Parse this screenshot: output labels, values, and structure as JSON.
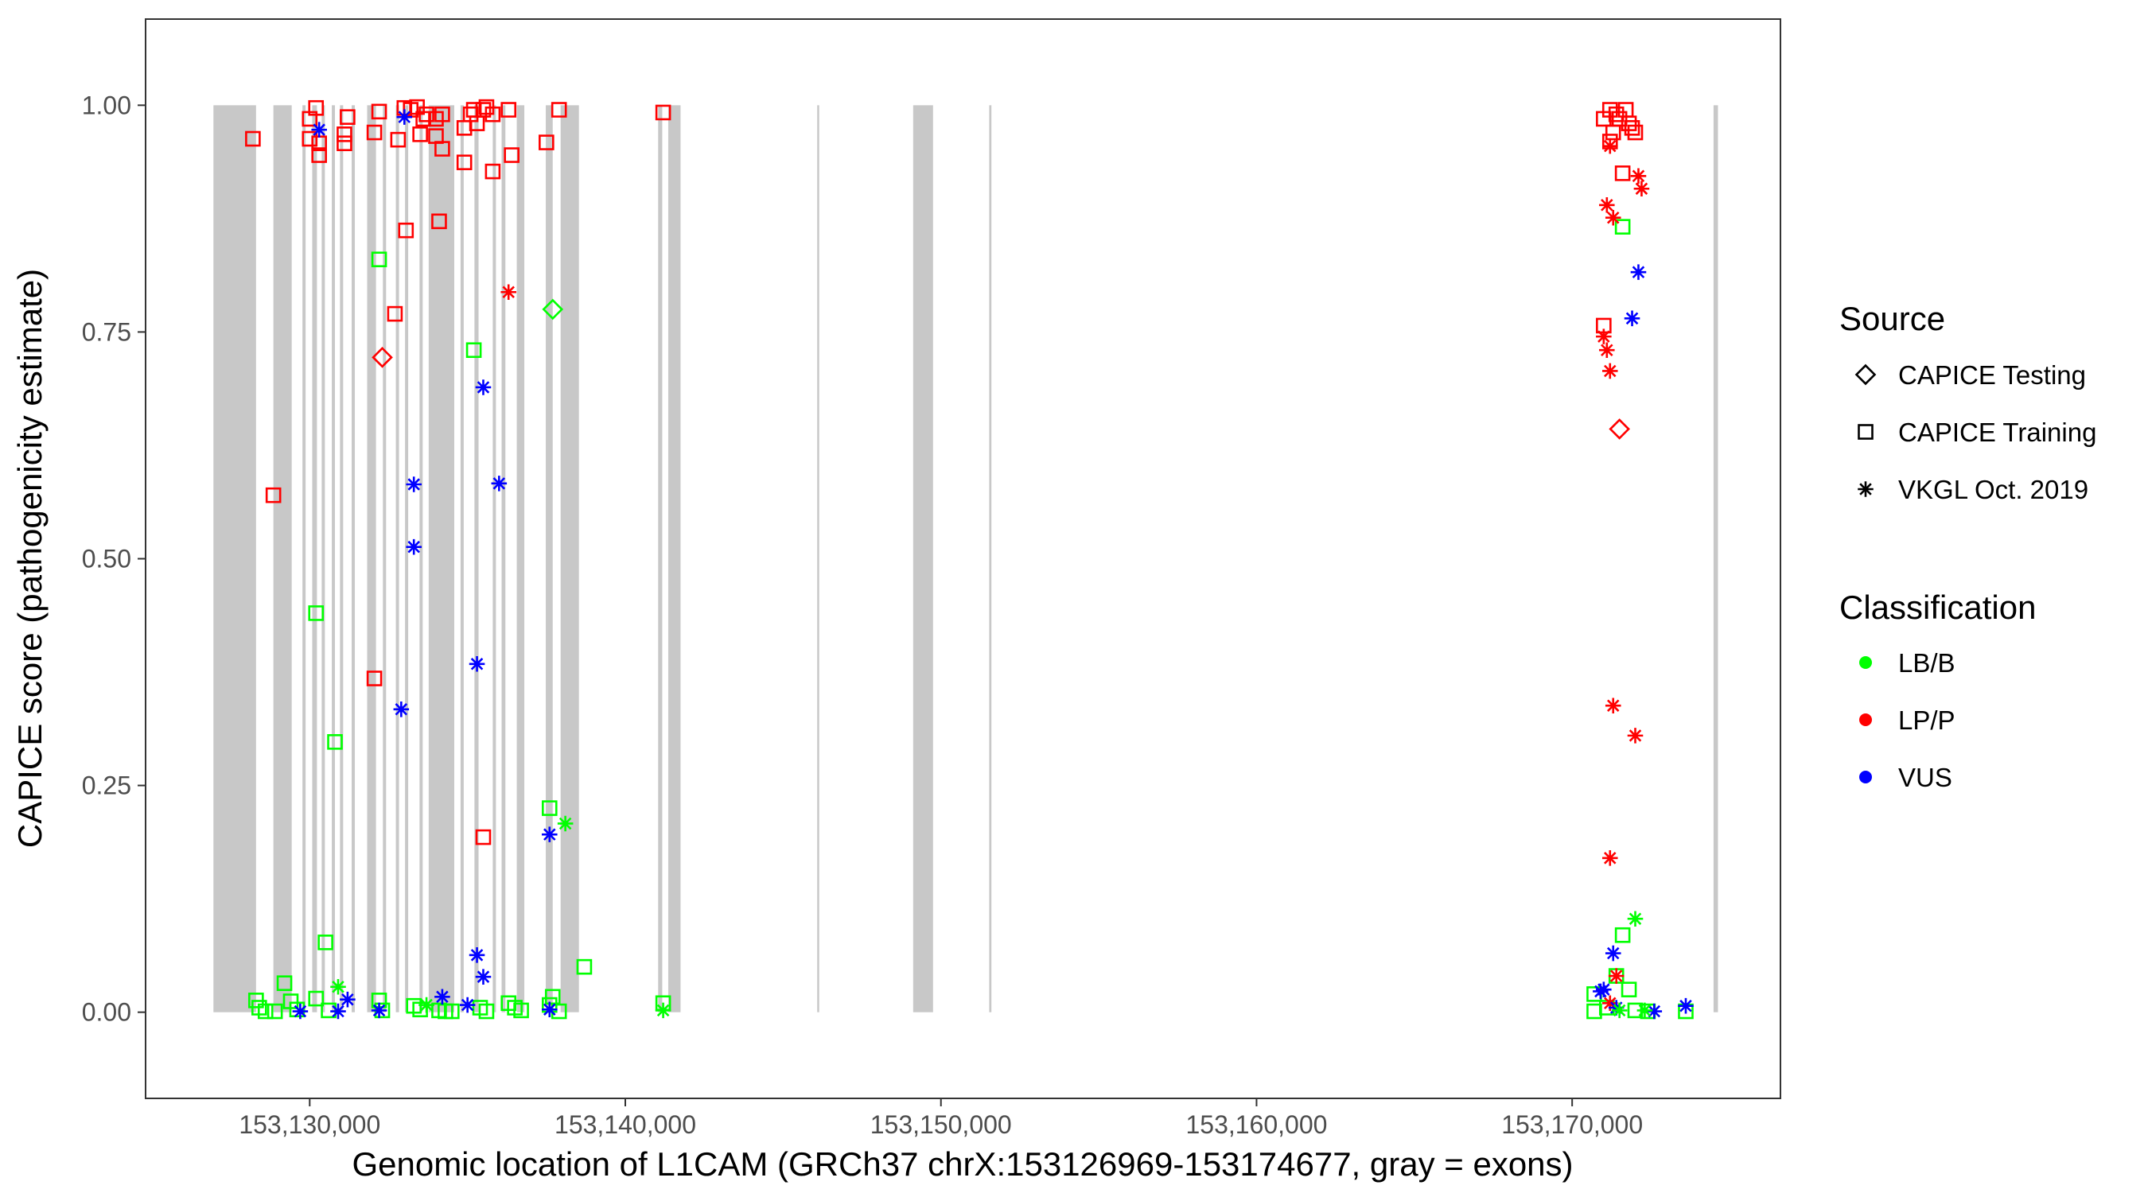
{
  "chart_data": {
    "type": "scatter",
    "xlabel": "Genomic location of L1CAM (GRCh37 chrX:153126969-153174677, gray = exons)",
    "ylabel": "CAPICE score (pathogenicity estimate)",
    "xlim": [
      153124800,
      153176600
    ],
    "ylim": [
      -0.095,
      1.095
    ],
    "x_ticks": [
      153130000,
      153140000,
      153150000,
      153160000,
      153170000
    ],
    "x_tick_labels": [
      "153,130,000",
      "153,140,000",
      "153,150,000",
      "153,160,000",
      "153,170,000"
    ],
    "y_ticks": [
      0,
      0.25,
      0.5,
      0.75,
      1
    ],
    "y_tick_labels": [
      "0.00",
      "0.25",
      "0.50",
      "0.75",
      "1.00"
    ],
    "grid": false,
    "exons": [
      [
        153126950,
        153128300
      ],
      [
        153128850,
        153129430
      ],
      [
        153129770,
        153129870
      ],
      [
        153130080,
        153130230
      ],
      [
        153130380,
        153130480
      ],
      [
        153130700,
        153130800
      ],
      [
        153130960,
        153131060
      ],
      [
        153131330,
        153131430
      ],
      [
        153131820,
        153132100
      ],
      [
        153132320,
        153132420
      ],
      [
        153132730,
        153132830
      ],
      [
        153133020,
        153133120
      ],
      [
        153133480,
        153133580
      ],
      [
        153133770,
        153134580
      ],
      [
        153134780,
        153134880
      ],
      [
        153135220,
        153135350
      ],
      [
        153135800,
        153135900
      ],
      [
        153136080,
        153136200
      ],
      [
        153136560,
        153136800
      ],
      [
        153137480,
        153137700
      ],
      [
        153137950,
        153138530
      ],
      [
        153141040,
        153141170
      ],
      [
        153141360,
        153141750
      ],
      [
        153146080,
        153146140
      ],
      [
        153149120,
        153149750
      ],
      [
        153151530,
        153151600
      ],
      [
        153174480,
        153174620
      ]
    ],
    "sources": [
      {
        "name": "CAPICE Testing",
        "shape": "diamond"
      },
      {
        "name": "CAPICE Training",
        "shape": "square"
      },
      {
        "name": "VKGL Oct. 2019",
        "shape": "asterisk"
      }
    ],
    "classifications": [
      {
        "name": "LB/B",
        "color": "#00ff00"
      },
      {
        "name": "LP/P",
        "color": "#ff0000"
      },
      {
        "name": "VUS",
        "color": "#0000ff"
      }
    ],
    "series": [
      {
        "source": "CAPICE Training",
        "class": "LP/P",
        "points": [
          [
            153128200,
            0.963
          ],
          [
            153128850,
            0.57
          ],
          [
            153130000,
            0.985
          ],
          [
            153130200,
            0.997
          ],
          [
            153130000,
            0.963
          ],
          [
            153130300,
            0.958
          ],
          [
            153130300,
            0.945
          ],
          [
            153131100,
            0.958
          ],
          [
            153131100,
            0.968
          ],
          [
            153131200,
            0.987
          ],
          [
            153132050,
            0.97
          ],
          [
            153132200,
            0.993
          ],
          [
            153132050,
            0.368
          ],
          [
            153132700,
            0.77
          ],
          [
            153132800,
            0.962
          ],
          [
            153133000,
            0.997
          ],
          [
            153133050,
            0.862
          ],
          [
            153133200,
            0.995
          ],
          [
            153133400,
            0.998
          ],
          [
            153133600,
            0.985
          ],
          [
            153133500,
            0.968
          ],
          [
            153133700,
            0.99
          ],
          [
            153134000,
            0.985
          ],
          [
            153134000,
            0.966
          ],
          [
            153134100,
            0.872
          ],
          [
            153134200,
            0.99
          ],
          [
            153134200,
            0.952
          ],
          [
            153134900,
            0.937
          ],
          [
            153134900,
            0.975
          ],
          [
            153135100,
            0.99
          ],
          [
            153135200,
            0.995
          ],
          [
            153135300,
            0.98
          ],
          [
            153135500,
            0.995
          ],
          [
            153135600,
            0.998
          ],
          [
            153135800,
            0.99
          ],
          [
            153135800,
            0.927
          ],
          [
            153135500,
            0.193
          ],
          [
            153136300,
            0.995
          ],
          [
            153136400,
            0.945
          ],
          [
            153137500,
            0.959
          ],
          [
            153137900,
            0.995
          ],
          [
            153141200,
            0.992
          ],
          [
            153171000,
            0.985
          ],
          [
            153171200,
            0.995
          ],
          [
            153171400,
            0.99
          ],
          [
            153171500,
            0.985
          ],
          [
            153171700,
            0.995
          ],
          [
            153171800,
            0.98
          ],
          [
            153171900,
            0.975
          ],
          [
            153172000,
            0.97
          ],
          [
            153171200,
            0.96
          ],
          [
            153171300,
            0.97
          ],
          [
            153171600,
            0.925
          ],
          [
            153171000,
            0.757
          ]
        ]
      },
      {
        "source": "CAPICE Training",
        "class": "LB/B",
        "points": [
          [
            153128300,
            0.013
          ],
          [
            153128400,
            0.005
          ],
          [
            153128600,
            0.001
          ],
          [
            153128900,
            0.001
          ],
          [
            153129200,
            0.032
          ],
          [
            153129400,
            0.012
          ],
          [
            153129600,
            0.003
          ],
          [
            153130200,
            0.44
          ],
          [
            153130200,
            0.015
          ],
          [
            153130500,
            0.077
          ],
          [
            153130800,
            0.298
          ],
          [
            153130600,
            0.002
          ],
          [
            153132200,
            0.83
          ],
          [
            153132200,
            0.013
          ],
          [
            153132300,
            0.002
          ],
          [
            153133300,
            0.007
          ],
          [
            153133500,
            0.003
          ],
          [
            153134100,
            0.002
          ],
          [
            153134300,
            0.001
          ],
          [
            153134500,
            0.001
          ],
          [
            153135200,
            0.73
          ],
          [
            153135400,
            0.005
          ],
          [
            153135600,
            0.001
          ],
          [
            153136300,
            0.01
          ],
          [
            153136500,
            0.005
          ],
          [
            153136700,
            0.002
          ],
          [
            153137600,
            0.225
          ],
          [
            153137600,
            0.008
          ],
          [
            153137700,
            0.017
          ],
          [
            153137900,
            0.001
          ],
          [
            153138700,
            0.05
          ],
          [
            153141200,
            0.01
          ],
          [
            153170700,
            0.02
          ],
          [
            153170700,
            0.001
          ],
          [
            153171100,
            0.005
          ],
          [
            153171400,
            0.04
          ],
          [
            153171600,
            0.085
          ],
          [
            153171800,
            0.025
          ],
          [
            153172000,
            0.002
          ],
          [
            153171600,
            0.866
          ],
          [
            153172400,
            0.001
          ],
          [
            153173600,
            0.001
          ]
        ]
      },
      {
        "source": "CAPICE Testing",
        "class": "LP/P",
        "points": [
          [
            153132300,
            0.722
          ],
          [
            153171500,
            0.643
          ]
        ]
      },
      {
        "source": "CAPICE Testing",
        "class": "LB/B",
        "points": [
          [
            153137700,
            0.775
          ]
        ]
      },
      {
        "source": "VKGL Oct. 2019",
        "class": "LP/P",
        "points": [
          [
            153136300,
            0.794
          ],
          [
            153171100,
            0.89
          ],
          [
            153171300,
            0.876
          ],
          [
            153171200,
            0.955
          ],
          [
            153171000,
            0.745
          ],
          [
            153171100,
            0.73
          ],
          [
            153171200,
            0.707
          ],
          [
            153172100,
            0.922
          ],
          [
            153172200,
            0.908
          ],
          [
            153171300,
            0.338
          ],
          [
            153172000,
            0.305
          ],
          [
            153171200,
            0.17
          ],
          [
            153171400,
            0.04
          ],
          [
            153171200,
            0.01
          ]
        ]
      },
      {
        "source": "VKGL Oct. 2019",
        "class": "VUS",
        "points": [
          [
            153130300,
            0.973
          ],
          [
            153133000,
            0.987
          ],
          [
            153132900,
            0.334
          ],
          [
            153133300,
            0.582
          ],
          [
            153133300,
            0.513
          ],
          [
            153135500,
            0.689
          ],
          [
            153136000,
            0.583
          ],
          [
            153135300,
            0.384
          ],
          [
            153135300,
            0.063
          ],
          [
            153135500,
            0.039
          ],
          [
            153134200,
            0.017
          ],
          [
            153135000,
            0.008
          ],
          [
            153131200,
            0.014
          ],
          [
            153130900,
            0.001
          ],
          [
            153132200,
            0.002
          ],
          [
            153137600,
            0.196
          ],
          [
            153137600,
            0.003
          ],
          [
            153129700,
            0.001
          ],
          [
            153172100,
            0.816
          ],
          [
            153171900,
            0.765
          ],
          [
            153171300,
            0.065
          ],
          [
            153171000,
            0.025
          ],
          [
            153170900,
            0.023
          ],
          [
            153171400,
            0.005
          ],
          [
            153172600,
            0.001
          ],
          [
            153173600,
            0.007
          ]
        ]
      },
      {
        "source": "VKGL Oct. 2019",
        "class": "LB/B",
        "points": [
          [
            153130900,
            0.028
          ],
          [
            153133700,
            0.008
          ],
          [
            153138100,
            0.208
          ],
          [
            153141200,
            0.002
          ],
          [
            153172000,
            0.103
          ],
          [
            153171500,
            0.002
          ],
          [
            153172300,
            0.002
          ]
        ]
      }
    ]
  }
}
